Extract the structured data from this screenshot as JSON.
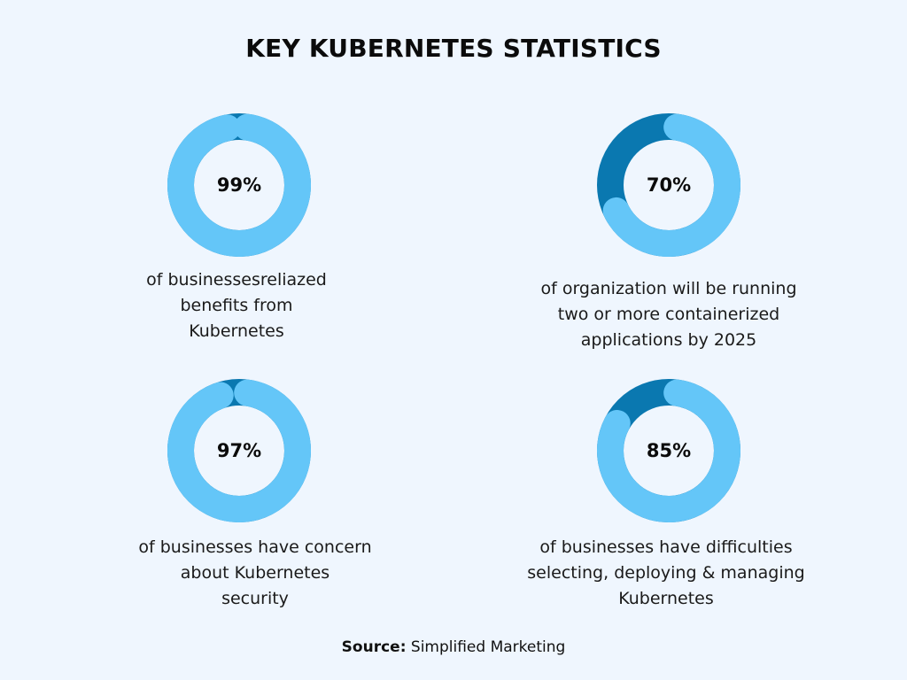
{
  "title": "KEY KUBERNETES STATISTICS",
  "colors": {
    "background": "#eff6fe",
    "ring_value": "#64c6f8",
    "ring_remainder": "#0a78b0",
    "text": "#0b0b0b"
  },
  "stats": [
    {
      "value": 99,
      "label": "99%",
      "lines": [
        "of businessesreliazed",
        "benefits from",
        "Kubernetes"
      ]
    },
    {
      "value": 70,
      "label": "70%",
      "lines": [
        "of organization will be running",
        "two or more containerized",
        "applications by 2025"
      ]
    },
    {
      "value": 97,
      "label": "97%",
      "lines": [
        "of businesses have concern",
        "about Kubernetes",
        "security"
      ]
    },
    {
      "value": 85,
      "label": "85%",
      "lines": [
        "of businesses have difficulties",
        "selecting, deploying & managing",
        "Kubernetes"
      ]
    }
  ],
  "source": {
    "label": "Source:",
    "text": "Simplified Marketing"
  },
  "chart_data": [
    {
      "type": "pie",
      "variant": "donut",
      "title": "KEY KUBERNETES STATISTICS",
      "categories": [
        "of businesses realized benefits from Kubernetes",
        "remainder"
      ],
      "values": [
        99,
        1
      ]
    },
    {
      "type": "pie",
      "variant": "donut",
      "title": "KEY KUBERNETES STATISTICS",
      "categories": [
        "of organization will be running two or more containerized applications by 2025",
        "remainder"
      ],
      "values": [
        70,
        30
      ]
    },
    {
      "type": "pie",
      "variant": "donut",
      "title": "KEY KUBERNETES STATISTICS",
      "categories": [
        "of businesses have concern about Kubernetes security",
        "remainder"
      ],
      "values": [
        97,
        3
      ]
    },
    {
      "type": "pie",
      "variant": "donut",
      "title": "KEY KUBERNETES STATISTICS",
      "categories": [
        "of businesses have difficulties selecting, deploying & managing Kubernetes",
        "remainder"
      ],
      "values": [
        85,
        15
      ]
    }
  ]
}
